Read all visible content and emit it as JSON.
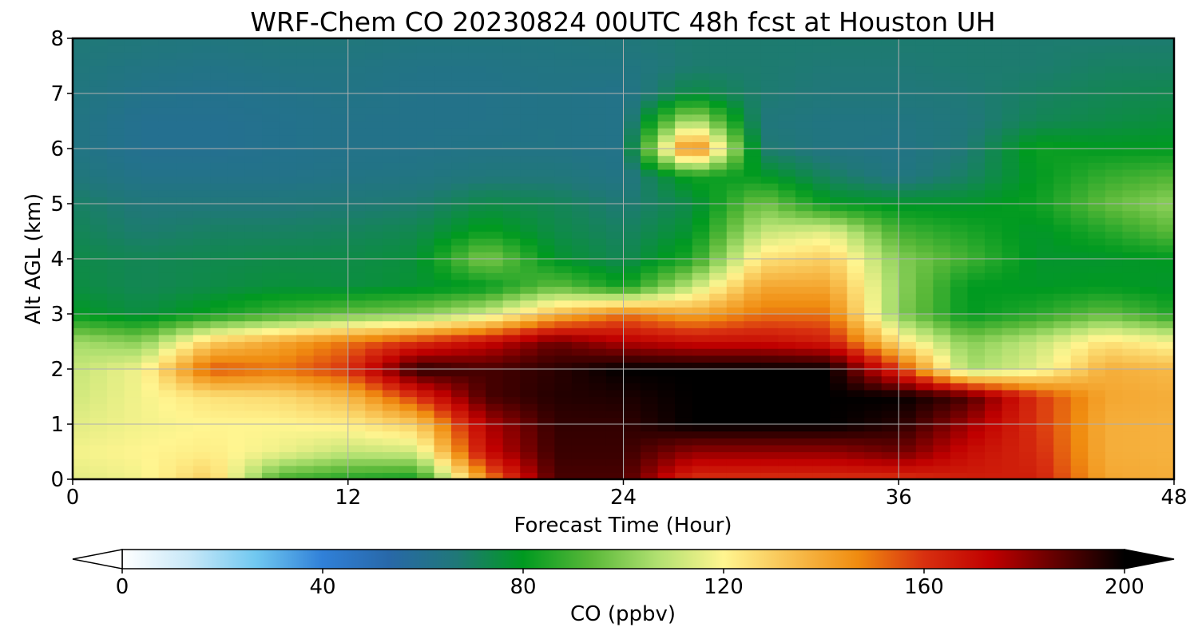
{
  "chart_data": {
    "type": "heatmap",
    "title": "WRF-Chem CO  20230824 00UTC 48h fcst at Houston UH",
    "xlabel": "Forecast Time (Hour)",
    "ylabel": "Alt AGL (km)",
    "xlim": [
      0,
      48
    ],
    "ylim": [
      0,
      8
    ],
    "xticks": [
      0,
      12,
      24,
      36,
      48
    ],
    "yticks": [
      0,
      1,
      2,
      3,
      4,
      5,
      6,
      7,
      8
    ],
    "grid": true,
    "colorbar": {
      "label": "CO  (ppbv)",
      "range": [
        0,
        200
      ],
      "ticks": [
        0,
        40,
        80,
        120,
        160,
        200
      ],
      "extend": "both",
      "orientation": "horizontal",
      "colors": [
        "#ffffff",
        "#c8e8f8",
        "#70c8f0",
        "#3080d8",
        "#2868a8",
        "#207878",
        "#009a20",
        "#58b838",
        "#b0e070",
        "#fff590",
        "#f8c050",
        "#f08c10",
        "#d83010",
        "#c00000",
        "#600000",
        "#000000"
      ]
    },
    "x": [
      0,
      3,
      6,
      9,
      12,
      15,
      18,
      21,
      24,
      27,
      30,
      33,
      36,
      39,
      42,
      45,
      48
    ],
    "y": [
      0,
      0.5,
      1,
      1.5,
      2,
      2.5,
      3,
      3.5,
      4,
      4.5,
      5,
      5.5,
      6,
      6.5,
      7,
      7.5,
      8
    ],
    "values": [
      [
        115,
        118,
        130,
        90,
        85,
        82,
        145,
        190,
        190,
        160,
        160,
        160,
        160,
        165,
        165,
        140,
        138
      ],
      [
        118,
        120,
        122,
        117,
        110,
        112,
        170,
        192,
        192,
        180,
        180,
        180,
        185,
        170,
        162,
        138,
        137
      ],
      [
        115,
        118,
        120,
        120,
        122,
        130,
        175,
        193,
        193,
        200,
        200,
        200,
        195,
        178,
        160,
        138,
        137
      ],
      [
        112,
        118,
        125,
        127,
        135,
        160,
        190,
        195,
        196,
        200,
        200,
        200,
        200,
        190,
        160,
        140,
        138
      ],
      [
        110,
        118,
        155,
        150,
        160,
        195,
        190,
        194,
        200,
        200,
        200,
        200,
        160,
        105,
        115,
        138,
        135
      ],
      [
        105,
        100,
        130,
        140,
        150,
        160,
        170,
        185,
        175,
        170,
        170,
        165,
        125,
        100,
        110,
        125,
        118
      ],
      [
        80,
        75,
        82,
        90,
        96,
        100,
        112,
        135,
        150,
        140,
        150,
        150,
        100,
        80,
        86,
        95,
        85
      ],
      [
        75,
        72,
        74,
        76,
        75,
        77,
        80,
        95,
        82,
        110,
        140,
        140,
        102,
        80,
        79,
        80,
        78
      ],
      [
        74,
        72,
        73,
        74,
        74,
        76,
        100,
        78,
        72,
        85,
        125,
        130,
        100,
        90,
        78,
        78,
        80
      ],
      [
        72,
        68,
        70,
        70,
        71,
        73,
        82,
        74,
        70,
        78,
        110,
        115,
        90,
        84,
        78,
        85,
        94
      ],
      [
        70,
        66,
        66,
        66,
        67,
        68,
        74,
        72,
        67,
        74,
        98,
        80,
        78,
        78,
        82,
        95,
        102
      ],
      [
        66,
        62,
        62,
        62,
        63,
        64,
        66,
        66,
        63,
        83,
        80,
        70,
        64,
        70,
        80,
        88,
        92
      ],
      [
        64,
        60,
        60,
        61,
        62,
        62,
        63,
        63,
        62,
        155,
        68,
        64,
        63,
        67,
        82,
        80,
        80
      ],
      [
        64,
        60,
        60,
        61,
        62,
        62,
        62,
        63,
        62,
        110,
        66,
        64,
        64,
        66,
        72,
        74,
        76
      ],
      [
        65,
        62,
        61,
        62,
        63,
        62,
        62,
        63,
        62,
        75,
        68,
        66,
        66,
        67,
        70,
        72,
        73
      ],
      [
        66,
        64,
        63,
        64,
        64,
        63,
        63,
        64,
        64,
        68,
        68,
        67,
        67,
        68,
        68,
        70,
        70
      ],
      [
        67,
        66,
        65,
        66,
        66,
        65,
        65,
        65,
        66,
        68,
        68,
        68,
        68,
        68,
        68,
        68,
        68
      ]
    ]
  }
}
